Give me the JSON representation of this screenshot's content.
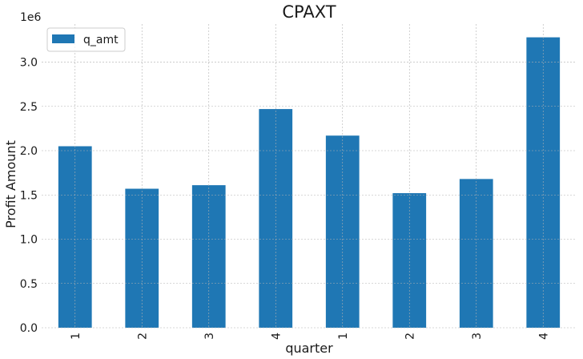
{
  "chart_data": {
    "type": "bar",
    "title": "CPAXT",
    "xlabel": "quarter",
    "ylabel": "Profit Amount",
    "y_offset_label": "1e6",
    "categories": [
      "1",
      "2",
      "3",
      "4",
      "1",
      "2",
      "3",
      "4"
    ],
    "series": [
      {
        "name": "q_amt",
        "color": "#1f77b4",
        "values": [
          2050000,
          1570000,
          1610000,
          2470000,
          2170000,
          1520000,
          1680000,
          3280000
        ]
      }
    ],
    "ylim": [
      0,
      3430000
    ],
    "yticks": [
      0,
      500000,
      1000000,
      1500000,
      2000000,
      2500000,
      3000000
    ],
    "ytick_labels": [
      "0.0",
      "0.5",
      "1.0",
      "1.5",
      "2.0",
      "2.5",
      "3.0"
    ],
    "grid": true,
    "legend_position": "top-left"
  }
}
